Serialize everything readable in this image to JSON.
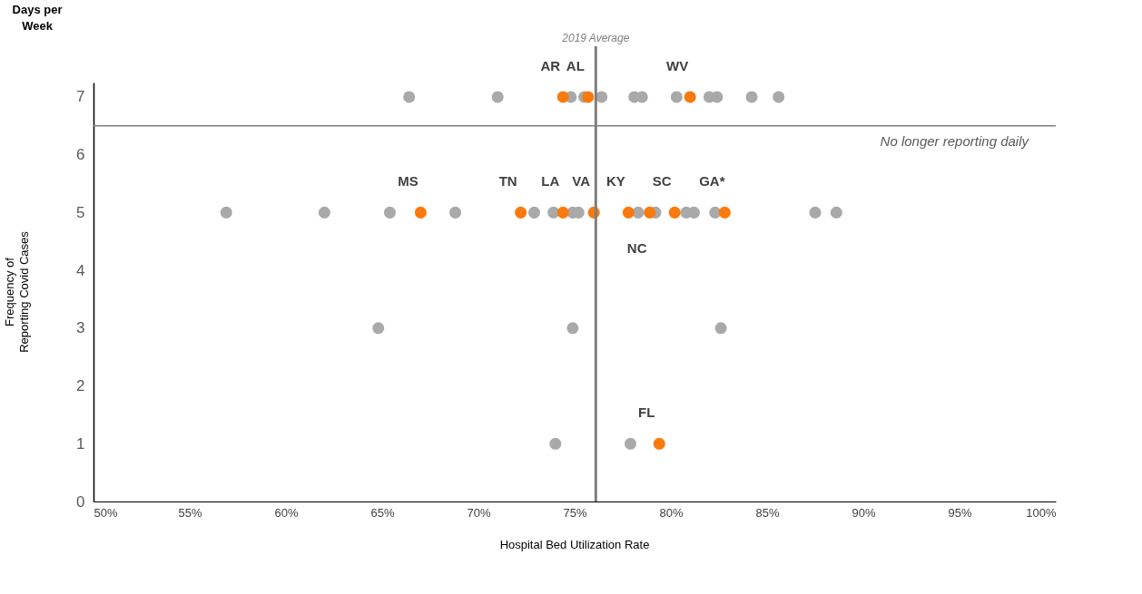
{
  "chart_data": {
    "type": "scatter",
    "xlabel": "Hospital Bed Utilization Rate",
    "ylabel": "Frequency of Reporting Covid Cases",
    "xlim": [
      50,
      100
    ],
    "xticks": [
      {
        "value": 50,
        "label": "50%"
      },
      {
        "value": 55,
        "label": "55%"
      },
      {
        "value": 60,
        "label": "60%"
      },
      {
        "value": 65,
        "label": "65%"
      },
      {
        "value": 70,
        "label": "70%"
      },
      {
        "value": 75,
        "label": "75%"
      },
      {
        "value": 80,
        "label": "80%"
      },
      {
        "value": 85,
        "label": "85%"
      },
      {
        "value": 90,
        "label": "90%"
      },
      {
        "value": 95,
        "label": "95%"
      },
      {
        "value": 100,
        "label": "100%"
      }
    ],
    "ylim": [
      0,
      7.25
    ],
    "yticks": [
      0,
      1,
      2,
      3,
      4,
      5,
      6,
      7
    ],
    "grid": false,
    "marker": "circle",
    "series": [
      {
        "color": "#a9a9a9",
        "x": [
          66.4,
          71.0,
          74.8,
          75.5,
          76.4,
          78.1,
          78.5,
          80.3,
          82.0,
          82.4,
          84.2,
          85.6,
          56.9,
          62.0,
          65.4,
          68.8,
          72.9,
          73.9,
          74.9,
          75.2,
          78.3,
          79.2,
          80.8,
          81.2,
          82.3,
          87.5,
          88.6,
          64.8,
          74.9,
          82.6,
          74.0,
          77.9
        ],
        "values": [
          7,
          7,
          7,
          7,
          7,
          7,
          7,
          7,
          7,
          7,
          7,
          7,
          5,
          5,
          5,
          5,
          5,
          5,
          5,
          5,
          5,
          5,
          5,
          5,
          5,
          5,
          5,
          3,
          3,
          3,
          1,
          1
        ]
      },
      {
        "color": "#fb7a0d",
        "x": [
          74.4,
          75.7,
          81.0,
          67.0,
          72.2,
          74.4,
          76.0,
          77.8,
          78.9,
          80.2,
          82.8,
          79.4
        ],
        "values": [
          7,
          7,
          7,
          5,
          5,
          5,
          5,
          5,
          5,
          5,
          5,
          1
        ]
      }
    ],
    "ref_lines": [
      {
        "axis": "x",
        "value": 76.1,
        "label": "2019 Average",
        "color": "#7f7f7f"
      },
      {
        "axis": "y",
        "value": 6.5,
        "label": "No longer reporting daily",
        "color": "#7f7f7f"
      }
    ],
    "annotations": [
      "Days per Week",
      {
        "text": "AR",
        "x": 74.4,
        "y": 7
      },
      {
        "text": "AL",
        "x": 75.7,
        "y": 7
      },
      {
        "text": "WV",
        "x": 81.0,
        "y": 7
      },
      {
        "text": "MS",
        "x": 67.0,
        "y": 5
      },
      {
        "text": "TN",
        "x": 72.2,
        "y": 5
      },
      {
        "text": "LA",
        "x": 74.4,
        "y": 5
      },
      {
        "text": "VA",
        "x": 76.0,
        "y": 5
      },
      {
        "text": "KY",
        "x": 77.8,
        "y": 5
      },
      {
        "text": "NC",
        "x": 78.9,
        "y": 5
      },
      {
        "text": "SC",
        "x": 80.2,
        "y": 5
      },
      {
        "text": "GA*",
        "x": 82.8,
        "y": 5
      },
      {
        "text": "FL",
        "x": 79.4,
        "y": 1
      }
    ]
  }
}
